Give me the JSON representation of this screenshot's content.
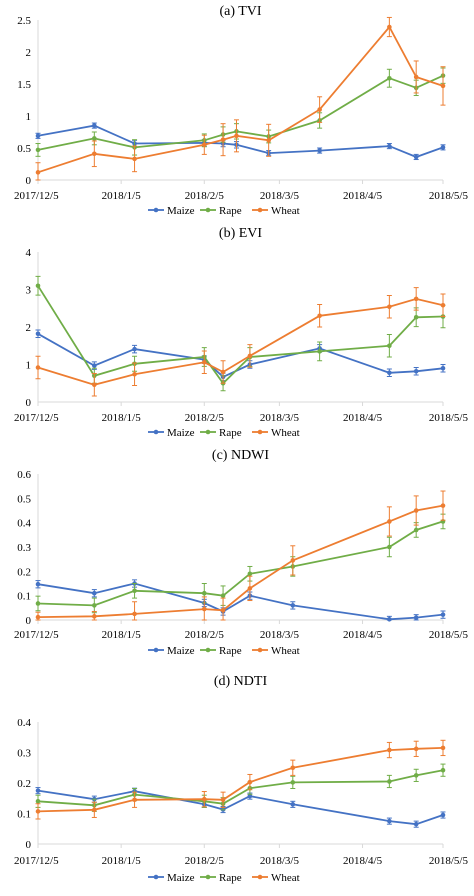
{
  "colors": {
    "Maize": "#4472c4",
    "Rape": "#70ad47",
    "Wheat": "#ed7d31",
    "axis": "#d9d9d9"
  },
  "chart_data": [
    {
      "type": "line",
      "title": "(a) TVI",
      "x_tick_labels": [
        "2017/12/5",
        "2018/1/5",
        "2018/2/5",
        "2018/3/5",
        "2018/4/5",
        "2018/5/5"
      ],
      "x_tick_dates": [
        "2017-12-05",
        "2018-01-05",
        "2018-02-05",
        "2018-03-05",
        "2018-04-05",
        "2018-05-05"
      ],
      "xlim": [
        "2017-12-05",
        "2018-05-05"
      ],
      "ylim": [
        0,
        2.5
      ],
      "y_ticks": [
        "0",
        "0.5",
        "1",
        "1.5",
        "2",
        "2.5"
      ],
      "y_tick_values": [
        0,
        0.5,
        1,
        1.5,
        2,
        2.5
      ],
      "grid": false,
      "legend_position": "bottom",
      "legend": [
        "Maize",
        "Rape",
        "Wheat"
      ],
      "series": [
        {
          "name": "Maize",
          "x": [
            "2017-12-05",
            "2017-12-26",
            "2018-01-10",
            "2018-02-05",
            "2018-02-12",
            "2018-02-17",
            "2018-03-01",
            "2018-03-20",
            "2018-04-15",
            "2018-04-25",
            "2018-05-05"
          ],
          "y": [
            0.69,
            0.85,
            0.57,
            0.58,
            0.57,
            0.55,
            0.42,
            0.46,
            0.53,
            0.36,
            0.51
          ],
          "err": [
            0.04,
            0.04,
            0.05,
            0.05,
            0.05,
            0.05,
            0.04,
            0.04,
            0.04,
            0.04,
            0.04
          ]
        },
        {
          "name": "Rape",
          "x": [
            "2017-12-05",
            "2017-12-26",
            "2018-01-10",
            "2018-02-05",
            "2018-02-12",
            "2018-02-17",
            "2018-03-01",
            "2018-03-20",
            "2018-04-15",
            "2018-04-25",
            "2018-05-05"
          ],
          "y": [
            0.47,
            0.65,
            0.51,
            0.62,
            0.71,
            0.76,
            0.68,
            0.93,
            1.59,
            1.44,
            1.63
          ],
          "err": [
            0.1,
            0.1,
            0.12,
            0.1,
            0.12,
            0.12,
            0.1,
            0.12,
            0.14,
            0.12,
            0.12
          ]
        },
        {
          "name": "Wheat",
          "x": [
            "2017-12-05",
            "2017-12-26",
            "2018-01-10",
            "2018-02-05",
            "2018-02-12",
            "2018-02-17",
            "2018-03-01",
            "2018-03-20",
            "2018-04-15",
            "2018-04-25",
            "2018-05-05"
          ],
          "y": [
            0.12,
            0.41,
            0.33,
            0.55,
            0.63,
            0.69,
            0.62,
            1.1,
            2.39,
            1.61,
            1.47
          ],
          "err": [
            0.15,
            0.2,
            0.2,
            0.15,
            0.25,
            0.25,
            0.25,
            0.2,
            0.15,
            0.25,
            0.3
          ]
        }
      ]
    },
    {
      "type": "line",
      "title": "(b) EVI",
      "x_tick_labels": [
        "2017/12/5",
        "2018/1/5",
        "2018/2/5",
        "2018/3/5",
        "2018/4/5",
        "2018/5/5"
      ],
      "x_tick_dates": [
        "2017-12-05",
        "2018-01-05",
        "2018-02-05",
        "2018-03-05",
        "2018-04-05",
        "2018-05-05"
      ],
      "xlim": [
        "2017-12-05",
        "2018-05-05"
      ],
      "ylim": [
        0,
        4
      ],
      "y_ticks": [
        "0",
        "1",
        "2",
        "3",
        "4"
      ],
      "y_tick_values": [
        0,
        1,
        2,
        3,
        4
      ],
      "grid": false,
      "legend_position": "bottom",
      "legend": [
        "Maize",
        "Rape",
        "Wheat"
      ],
      "series": [
        {
          "name": "Maize",
          "x": [
            "2017-12-05",
            "2017-12-26",
            "2018-01-10",
            "2018-02-05",
            "2018-02-12",
            "2018-02-22",
            "2018-03-20",
            "2018-04-15",
            "2018-04-25",
            "2018-05-05"
          ],
          "y": [
            1.82,
            0.97,
            1.41,
            1.13,
            0.67,
            1.0,
            1.43,
            0.78,
            0.82,
            0.9
          ],
          "err": [
            0.1,
            0.1,
            0.1,
            0.1,
            0.1,
            0.1,
            0.1,
            0.1,
            0.1,
            0.1
          ]
        },
        {
          "name": "Rape",
          "x": [
            "2017-12-05",
            "2017-12-26",
            "2018-01-10",
            "2018-02-05",
            "2018-02-12",
            "2018-02-22",
            "2018-03-20",
            "2018-04-15",
            "2018-04-25",
            "2018-05-05"
          ],
          "y": [
            3.1,
            0.7,
            1.02,
            1.2,
            0.5,
            1.2,
            1.35,
            1.5,
            2.26,
            2.28
          ],
          "err": [
            0.25,
            0.2,
            0.2,
            0.25,
            0.2,
            0.25,
            0.25,
            0.3,
            0.25,
            0.3
          ]
        },
        {
          "name": "Wheat",
          "x": [
            "2017-12-05",
            "2017-12-26",
            "2018-01-10",
            "2018-02-05",
            "2018-02-12",
            "2018-02-22",
            "2018-03-20",
            "2018-04-15",
            "2018-04-25",
            "2018-05-05"
          ],
          "y": [
            0.92,
            0.46,
            0.74,
            1.06,
            0.8,
            1.23,
            2.3,
            2.54,
            2.75,
            2.58
          ],
          "err": [
            0.3,
            0.3,
            0.3,
            0.3,
            0.3,
            0.3,
            0.3,
            0.3,
            0.3,
            0.3
          ]
        }
      ]
    },
    {
      "type": "line",
      "title": "(c) NDWI",
      "x_tick_labels": [
        "2017/12/5",
        "2018/1/5",
        "2018/2/5",
        "2018/3/5",
        "2018/4/5",
        "2018/5/5"
      ],
      "x_tick_dates": [
        "2017-12-05",
        "2018-01-05",
        "2018-02-05",
        "2018-03-05",
        "2018-04-05",
        "2018-05-05"
      ],
      "xlim": [
        "2017-12-05",
        "2018-05-05"
      ],
      "ylim": [
        0,
        0.6
      ],
      "y_ticks": [
        "0",
        "0.1",
        "0.2",
        "0.3",
        "0.4",
        "0.5",
        "0.6"
      ],
      "y_tick_values": [
        0,
        0.1,
        0.2,
        0.3,
        0.4,
        0.5,
        0.6
      ],
      "grid": false,
      "legend_position": "bottom",
      "legend": [
        "Maize",
        "Rape",
        "Wheat"
      ],
      "series": [
        {
          "name": "Maize",
          "x": [
            "2017-12-05",
            "2017-12-26",
            "2018-01-10",
            "2018-02-05",
            "2018-02-12",
            "2018-02-22",
            "2018-03-10",
            "2018-04-15",
            "2018-04-25",
            "2018-05-05"
          ],
          "y": [
            0.147,
            0.11,
            0.15,
            0.07,
            0.035,
            0.1,
            0.06,
            0.003,
            0.01,
            0.022
          ],
          "err": [
            0.015,
            0.015,
            0.015,
            0.015,
            0.015,
            0.015,
            0.015,
            0.012,
            0.012,
            0.015
          ]
        },
        {
          "name": "Rape",
          "x": [
            "2017-12-05",
            "2017-12-26",
            "2018-01-10",
            "2018-02-05",
            "2018-02-12",
            "2018-02-22",
            "2018-03-10",
            "2018-04-15",
            "2018-04-25",
            "2018-05-05"
          ],
          "y": [
            0.068,
            0.06,
            0.12,
            0.11,
            0.1,
            0.19,
            0.22,
            0.3,
            0.37,
            0.405
          ],
          "err": [
            0.03,
            0.03,
            0.03,
            0.04,
            0.04,
            0.03,
            0.04,
            0.04,
            0.03,
            0.03
          ]
        },
        {
          "name": "Wheat",
          "x": [
            "2017-12-05",
            "2017-12-26",
            "2018-01-10",
            "2018-02-05",
            "2018-02-12",
            "2018-02-22",
            "2018-03-10",
            "2018-04-15",
            "2018-04-25",
            "2018-05-05"
          ],
          "y": [
            0.012,
            0.015,
            0.025,
            0.045,
            0.04,
            0.13,
            0.245,
            0.405,
            0.45,
            0.47
          ],
          "err": [
            0.02,
            0.02,
            0.05,
            0.05,
            0.05,
            0.05,
            0.06,
            0.06,
            0.06,
            0.06
          ]
        }
      ]
    },
    {
      "type": "line",
      "title": "(d) NDTI",
      "x_tick_labels": [
        "2017/12/5",
        "2018/1/5",
        "2018/2/5",
        "2018/3/5",
        "2018/4/5",
        "2018/5/5"
      ],
      "x_tick_dates": [
        "2017-12-05",
        "2018-01-05",
        "2018-02-05",
        "2018-03-05",
        "2018-04-05",
        "2018-05-05"
      ],
      "xlim": [
        "2017-12-05",
        "2018-05-05"
      ],
      "ylim": [
        0,
        0.4
      ],
      "y_ticks": [
        "0",
        "0.1",
        "0.2",
        "0.3",
        "0.4"
      ],
      "y_tick_values": [
        0,
        0.1,
        0.2,
        0.3,
        0.4
      ],
      "grid": false,
      "legend_position": "bottom",
      "legend": [
        "Maize",
        "Rape",
        "Wheat"
      ],
      "series": [
        {
          "name": "Maize",
          "x": [
            "2017-12-05",
            "2017-12-26",
            "2018-01-10",
            "2018-02-05",
            "2018-02-12",
            "2018-02-22",
            "2018-03-10",
            "2018-04-15",
            "2018-04-25",
            "2018-05-05"
          ],
          "y": [
            0.175,
            0.147,
            0.173,
            0.13,
            0.113,
            0.157,
            0.13,
            0.075,
            0.065,
            0.095
          ],
          "err": [
            0.01,
            0.01,
            0.01,
            0.01,
            0.01,
            0.01,
            0.01,
            0.01,
            0.01,
            0.01
          ]
        },
        {
          "name": "Rape",
          "x": [
            "2017-12-05",
            "2017-12-26",
            "2018-01-10",
            "2018-02-05",
            "2018-02-12",
            "2018-02-22",
            "2018-03-10",
            "2018-04-15",
            "2018-04-25",
            "2018-05-05"
          ],
          "y": [
            0.14,
            0.127,
            0.162,
            0.14,
            0.132,
            0.183,
            0.202,
            0.205,
            0.225,
            0.242
          ],
          "err": [
            0.02,
            0.02,
            0.02,
            0.02,
            0.02,
            0.02,
            0.02,
            0.02,
            0.02,
            0.02
          ]
        },
        {
          "name": "Wheat",
          "x": [
            "2017-12-05",
            "2017-12-26",
            "2018-01-10",
            "2018-02-05",
            "2018-02-12",
            "2018-02-22",
            "2018-03-10",
            "2018-04-15",
            "2018-04-25",
            "2018-05-05"
          ],
          "y": [
            0.107,
            0.112,
            0.145,
            0.147,
            0.145,
            0.203,
            0.25,
            0.308,
            0.312,
            0.315
          ],
          "err": [
            0.025,
            0.025,
            0.025,
            0.025,
            0.025,
            0.025,
            0.025,
            0.025,
            0.025,
            0.025
          ]
        }
      ]
    }
  ]
}
